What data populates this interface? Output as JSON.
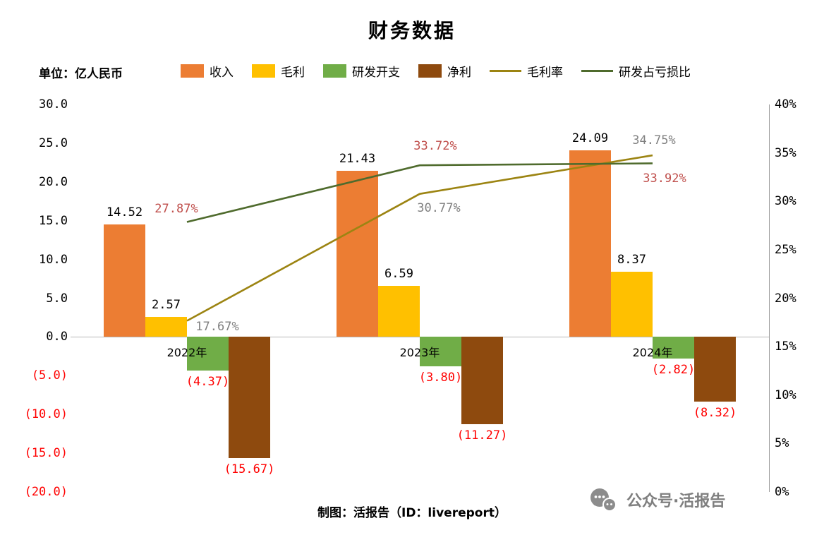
{
  "title": "财务数据",
  "unit_label": "单位：亿人民币",
  "footer": {
    "credit": "制图：活报告（ID：livereport）",
    "wechat": "公众号·活报告"
  },
  "legend": [
    {
      "label": "收入",
      "type": "bar",
      "color": "#EC7D33"
    },
    {
      "label": "毛利",
      "type": "bar",
      "color": "#FFC000"
    },
    {
      "label": "研发开支",
      "type": "bar",
      "color": "#70AD47"
    },
    {
      "label": "净利",
      "type": "bar",
      "color": "#8E4A0E"
    },
    {
      "label": "毛利率",
      "type": "line",
      "color": "#9C8412"
    },
    {
      "label": "研发占亏损比",
      "type": "line",
      "color": "#4F6B2D"
    }
  ],
  "chart_data": {
    "type": "bar+line",
    "title": "财务数据",
    "unit": "亿人民币",
    "categories": [
      "2022年",
      "2023年",
      "2024年"
    ],
    "left_ylim": [
      -20,
      30
    ],
    "right_ylim": [
      0,
      40
    ],
    "grid": false,
    "legend_position": "top",
    "left_axis_ticks": [
      {
        "v": 30,
        "label": "30.0",
        "color": "#000000"
      },
      {
        "v": 25,
        "label": "25.0",
        "color": "#000000"
      },
      {
        "v": 20,
        "label": "20.0",
        "color": "#000000"
      },
      {
        "v": 15,
        "label": "15.0",
        "color": "#000000"
      },
      {
        "v": 10,
        "label": "10.0",
        "color": "#000000"
      },
      {
        "v": 5,
        "label": "5.0",
        "color": "#000000"
      },
      {
        "v": 0,
        "label": "0.0",
        "color": "#000000"
      },
      {
        "v": -5,
        "label": "(5.0)",
        "color": "#FF0000"
      },
      {
        "v": -10,
        "label": "(10.0)",
        "color": "#FF0000"
      },
      {
        "v": -15,
        "label": "(15.0)",
        "color": "#FF0000"
      },
      {
        "v": -20,
        "label": "(20.0)",
        "color": "#FF0000"
      }
    ],
    "right_axis_ticks": [
      {
        "v": 40,
        "label": "40%"
      },
      {
        "v": 35,
        "label": "35%"
      },
      {
        "v": 30,
        "label": "30%"
      },
      {
        "v": 25,
        "label": "25%"
      },
      {
        "v": 20,
        "label": "20%"
      },
      {
        "v": 15,
        "label": "15%"
      },
      {
        "v": 10,
        "label": "10%"
      },
      {
        "v": 5,
        "label": "5%"
      },
      {
        "v": 0,
        "label": "0%"
      }
    ],
    "bar_series": [
      {
        "id": "revenue",
        "name": "收入",
        "color": "#EC7D33",
        "values": [
          14.52,
          21.43,
          24.09
        ],
        "labels": [
          "14.52",
          "21.43",
          "24.09"
        ],
        "label_color": "#000000"
      },
      {
        "id": "gross-profit",
        "name": "毛利",
        "color": "#FFC000",
        "values": [
          2.57,
          6.59,
          8.37
        ],
        "labels": [
          "2.57",
          "6.59",
          "8.37"
        ],
        "label_color": "#000000"
      },
      {
        "id": "rnd-expense",
        "name": "研发开支",
        "color": "#70AD47",
        "values": [
          -4.37,
          -3.8,
          -2.82
        ],
        "labels": [
          "(4.37)",
          "(3.80)",
          "(2.82)"
        ],
        "label_color": "#FF0000"
      },
      {
        "id": "net-profit",
        "name": "净利",
        "color": "#8E4A0E",
        "values": [
          -15.67,
          -11.27,
          -8.32
        ],
        "labels": [
          "(15.67)",
          "(11.27)",
          "(8.32)"
        ],
        "label_color": "#FF0000"
      }
    ],
    "line_series": [
      {
        "id": "gross-margin",
        "name": "毛利率",
        "color": "#9C8412",
        "values": [
          17.67,
          30.77,
          34.75
        ],
        "labels": [
          "17.67%",
          "30.77%",
          "34.75%"
        ],
        "label_color": "#808080"
      },
      {
        "id": "rnd-loss-ratio",
        "name": "研发占亏损比",
        "color": "#4F6B2D",
        "values": [
          27.87,
          33.72,
          33.92
        ],
        "labels": [
          "27.87%",
          "33.72%",
          "33.92%"
        ],
        "label_color": "#C0504D"
      }
    ]
  }
}
